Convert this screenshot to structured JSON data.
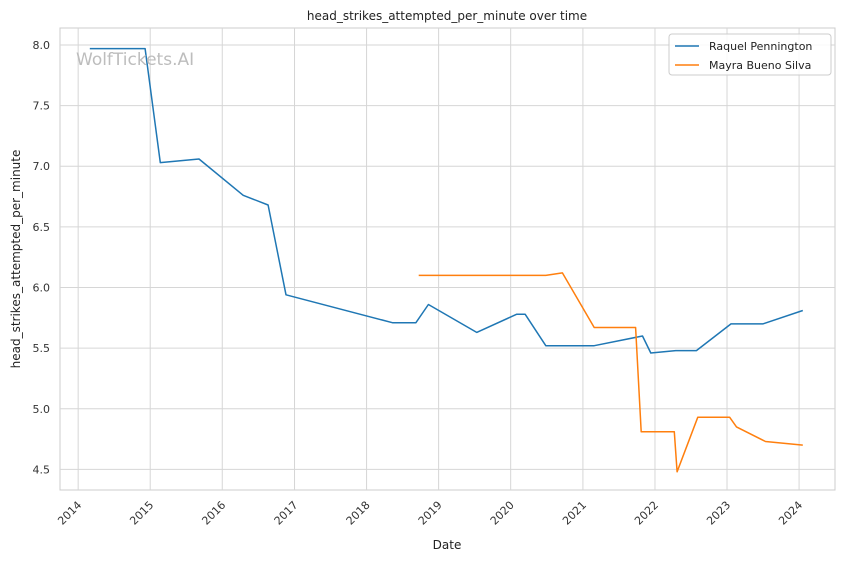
{
  "chart_data": {
    "type": "line",
    "title": "head_strikes_attempted_per_minute over time",
    "xlabel": "Date",
    "ylabel": "head_strikes_attempted_per_minute",
    "xlim": [
      "2013-10-01",
      "2024-07-01"
    ],
    "ylim": [
      4.33,
      8.14
    ],
    "x_ticks": [
      "2014",
      "2015",
      "2016",
      "2017",
      "2018",
      "2019",
      "2020",
      "2021",
      "2022",
      "2023",
      "2024"
    ],
    "y_ticks": [
      "4.5",
      "5.0",
      "5.5",
      "6.0",
      "6.5",
      "7.0",
      "7.5",
      "8.0"
    ],
    "grid": true,
    "legend_position": "top-right",
    "watermark": "WolfTickets.AI",
    "series": [
      {
        "name": "Raquel Pennington",
        "color": "#1f77b4",
        "points": [
          [
            "2014-03-01",
            7.97
          ],
          [
            "2014-12-06",
            7.97
          ],
          [
            "2015-02-21",
            7.03
          ],
          [
            "2015-09-05",
            7.06
          ],
          [
            "2016-04-16",
            6.76
          ],
          [
            "2016-08-20",
            6.68
          ],
          [
            "2016-11-19",
            5.94
          ],
          [
            "2018-05-12",
            5.71
          ],
          [
            "2018-09-08",
            5.71
          ],
          [
            "2018-11-10",
            5.86
          ],
          [
            "2019-07-13",
            5.63
          ],
          [
            "2020-02-01",
            5.78
          ],
          [
            "2020-03-14",
            5.78
          ],
          [
            "2020-06-27",
            5.52
          ],
          [
            "2021-02-27",
            5.52
          ],
          [
            "2021-10-30",
            5.6
          ],
          [
            "2021-12-11",
            5.46
          ],
          [
            "2022-04-16",
            5.48
          ],
          [
            "2022-07-30",
            5.48
          ],
          [
            "2023-01-21",
            5.7
          ],
          [
            "2023-07-01",
            5.7
          ],
          [
            "2024-01-20",
            5.81
          ]
        ]
      },
      {
        "name": "Mayra Bueno Silva",
        "color": "#ff7f0e",
        "points": [
          [
            "2018-09-22",
            6.1
          ],
          [
            "2020-06-27",
            6.1
          ],
          [
            "2020-09-19",
            6.12
          ],
          [
            "2021-02-27",
            5.67
          ],
          [
            "2021-09-25",
            5.67
          ],
          [
            "2021-10-23",
            4.81
          ],
          [
            "2022-04-09",
            4.81
          ],
          [
            "2022-04-23",
            4.48
          ],
          [
            "2022-08-06",
            4.93
          ],
          [
            "2023-01-14",
            4.93
          ],
          [
            "2023-02-18",
            4.85
          ],
          [
            "2023-07-15",
            4.73
          ],
          [
            "2024-01-20",
            4.7
          ]
        ]
      }
    ]
  }
}
